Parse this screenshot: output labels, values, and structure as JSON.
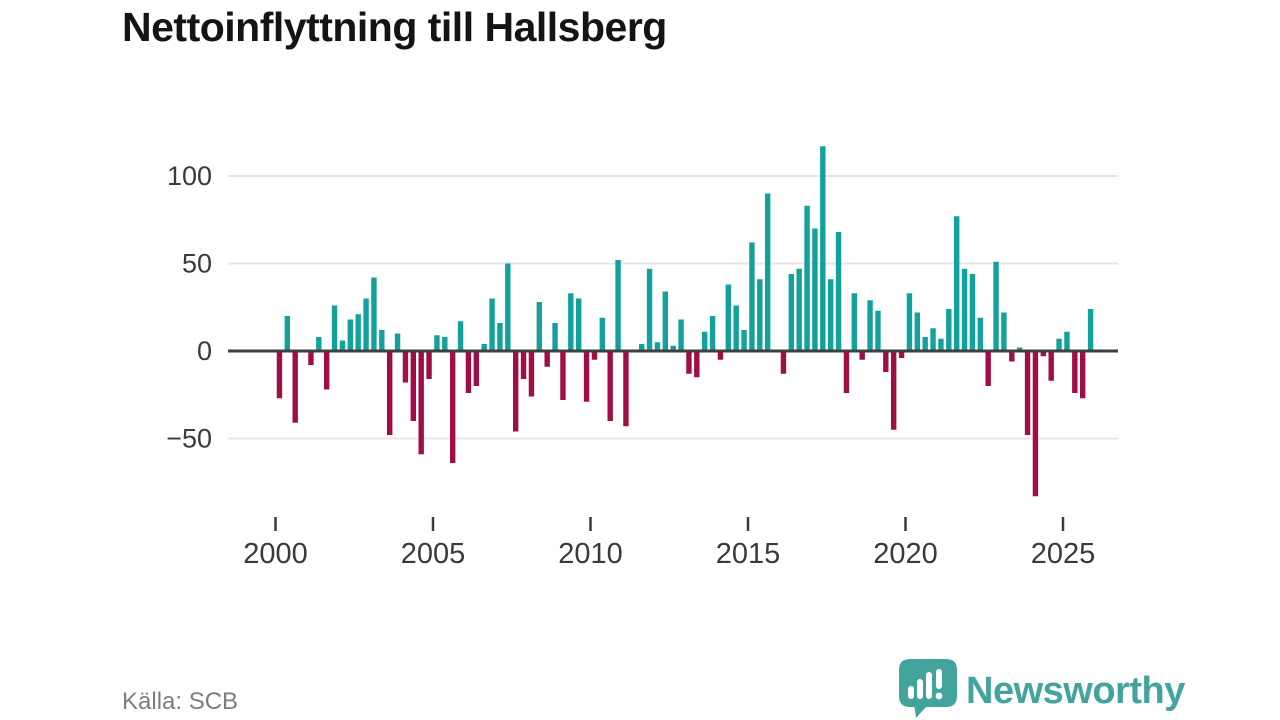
{
  "title": "Nettoinflyttning till Hallsberg",
  "source": "Källa: SCB",
  "brand": {
    "name": "Newsworthy"
  },
  "colors": {
    "positive_bar": "#12a19c",
    "negative_bar": "#a00e45",
    "grid_line": "#e6e6e6",
    "zero_line": "#3f3f3f",
    "axis_text": "#3a3a3a",
    "title_text": "#141414",
    "source_text": "#7d7d7d",
    "brand_teal": "#43a49d"
  },
  "chart_data": {
    "type": "bar",
    "title": "Nettoinflyttning till Hallsberg",
    "frequency": "quarterly",
    "start": "2000Q1",
    "end": "2025Q4",
    "ylabel": "",
    "xlabel": "",
    "grid": "horizontal",
    "legend": "none",
    "ylim": [
      -95,
      125
    ],
    "y_ticks": [
      100,
      50,
      0,
      -50
    ],
    "x_tick_labels": [
      "2000",
      "2005",
      "2010",
      "2015",
      "2020",
      "2025"
    ],
    "x_tick_slot_positions": [
      0,
      20,
      40,
      60,
      80,
      100
    ],
    "values": [
      -27,
      20,
      -41,
      0,
      -8,
      8,
      -22,
      26,
      6,
      18,
      21,
      30,
      42,
      12,
      -48,
      10,
      -18,
      -40,
      -59,
      -16,
      9,
      8,
      -64,
      17,
      -24,
      -20,
      4,
      30,
      16,
      50,
      -46,
      -16,
      -26,
      28,
      -9,
      16,
      -28,
      33,
      30,
      -29,
      -5,
      19,
      -40,
      52,
      -43,
      0,
      4,
      47,
      5,
      34,
      3,
      18,
      -13,
      -15,
      11,
      20,
      -5,
      38,
      26,
      12,
      62,
      41,
      90,
      0,
      -13,
      44,
      47,
      83,
      70,
      117,
      41,
      68,
      -24,
      33,
      -5,
      29,
      23,
      -12,
      -45,
      -4,
      33,
      22,
      8,
      13,
      7,
      24,
      77,
      47,
      44,
      19,
      -20,
      51,
      22,
      -6,
      2,
      -48,
      -83,
      -3,
      -17,
      7,
      11,
      -24,
      -27,
      24
    ]
  }
}
